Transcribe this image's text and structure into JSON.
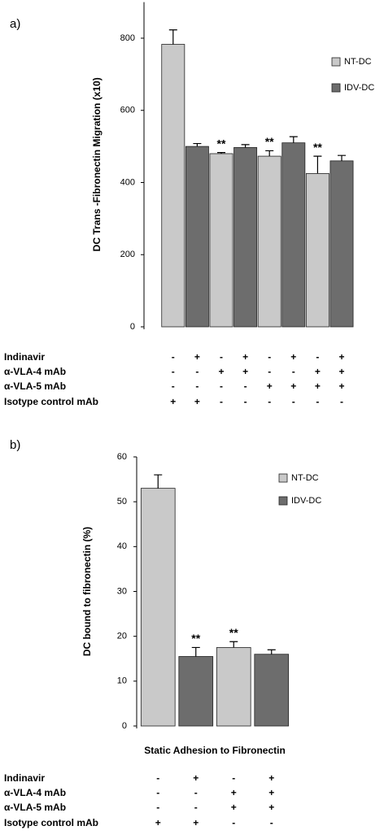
{
  "chart_data": [
    {
      "type": "bar",
      "panel_label": "a)",
      "y_label": "DC Trans -Fibronectin Migration (x10)",
      "categories": [
        null,
        null,
        null,
        null,
        null,
        null,
        null,
        null
      ],
      "series": [
        {
          "name": "NT-DC",
          "color": "#c9c9c9",
          "values": [
            783,
            null,
            480,
            null,
            473,
            null,
            425,
            null
          ],
          "errors": [
            40,
            null,
            3,
            null,
            15,
            null,
            48,
            null
          ]
        },
        {
          "name": "IDV-DC",
          "color": "#6d6d6d",
          "values": [
            null,
            500,
            null,
            497,
            null,
            510,
            null,
            460
          ],
          "errors": [
            null,
            8,
            null,
            8,
            null,
            17,
            null,
            15
          ]
        }
      ],
      "ylim": [
        0,
        900
      ],
      "yticks": [
        0,
        200,
        400,
        600,
        800
      ],
      "legend": "upper right",
      "annotations": [
        {
          "text": "**",
          "category": 2
        },
        {
          "text": "**",
          "category": 4
        },
        {
          "text": "**",
          "category": 6
        }
      ],
      "conditions": [
        {
          "label": "Indinavir",
          "signs": [
            "-",
            "+",
            "-",
            "+",
            "-",
            "+",
            "-",
            "+"
          ]
        },
        {
          "label": "α-VLA-4 mAb",
          "signs": [
            "-",
            "-",
            "+",
            "+",
            "-",
            "-",
            "+",
            "+"
          ]
        },
        {
          "label": "α-VLA-5 mAb",
          "signs": [
            "-",
            "-",
            "-",
            "-",
            "+",
            "+",
            "+",
            "+"
          ]
        },
        {
          "label": "Isotype control mAb",
          "signs": [
            "+",
            "+",
            "-",
            "-",
            "-",
            "-",
            "-",
            "-"
          ]
        }
      ]
    },
    {
      "type": "bar",
      "panel_label": "b)",
      "y_label": "DC bound to fibronectin (%)",
      "x_label": "Static Adhesion to Fibronectin",
      "categories": [
        null,
        null,
        null,
        null
      ],
      "series": [
        {
          "name": "NT-DC",
          "color": "#c9c9c9",
          "values": [
            53,
            null,
            17.5,
            null
          ],
          "errors": [
            3,
            null,
            1.3,
            null
          ]
        },
        {
          "name": "IDV-DC",
          "color": "#6d6d6d",
          "values": [
            null,
            15.5,
            null,
            16
          ],
          "errors": [
            null,
            2,
            null,
            1
          ]
        }
      ],
      "ylim": [
        0,
        60
      ],
      "yticks": [
        0,
        10,
        20,
        30,
        40,
        50,
        60
      ],
      "legend": "upper right",
      "annotations": [
        {
          "text": "**",
          "category": 1
        },
        {
          "text": "**",
          "category": 2
        }
      ],
      "conditions": [
        {
          "label": "Indinavir",
          "signs": [
            "-",
            "+",
            "-",
            "+"
          ]
        },
        {
          "label": "α-VLA-4 mAb",
          "signs": [
            "-",
            "-",
            "+",
            "+"
          ]
        },
        {
          "label": "α-VLA-5 mAb",
          "signs": [
            "-",
            "-",
            "+",
            "+"
          ]
        },
        {
          "label": "Isotype control mAb",
          "signs": [
            "+",
            "+",
            "-",
            "-"
          ]
        }
      ]
    }
  ]
}
